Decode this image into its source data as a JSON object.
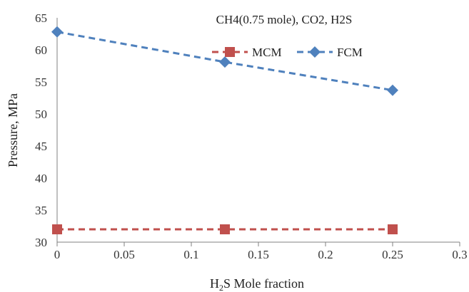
{
  "chart_data": {
    "type": "line",
    "title": "CH4(0.75  mole), CO2, H2S",
    "xlabel": {
      "prefix": "H",
      "subscript": "2",
      "suffix": "S Mole fraction"
    },
    "ylabel": "Pressure, MPa",
    "xlim": [
      0,
      0.3
    ],
    "ylim": [
      30,
      65
    ],
    "x_ticks": [
      "0",
      "0.05",
      "0.1",
      "0.15",
      "0.2",
      "0.25",
      "0.3"
    ],
    "y_ticks": [
      "30",
      "35",
      "40",
      "45",
      "50",
      "55",
      "60",
      "65"
    ],
    "grid": false,
    "legend_position": "top-right",
    "series": [
      {
        "name": "MCM",
        "marker": "square",
        "color": "#C0504D",
        "line_style": "dashed",
        "points": [
          {
            "x": 0,
            "y": 32
          },
          {
            "x": 0.125,
            "y": 32
          },
          {
            "x": 0.25,
            "y": 32
          }
        ]
      },
      {
        "name": "FCM",
        "marker": "diamond",
        "color": "#4F81BD",
        "line_style": "dashed",
        "points": [
          {
            "x": 0,
            "y": 62.8
          },
          {
            "x": 0.125,
            "y": 58.1
          },
          {
            "x": 0.25,
            "y": 53.7
          }
        ]
      }
    ]
  }
}
